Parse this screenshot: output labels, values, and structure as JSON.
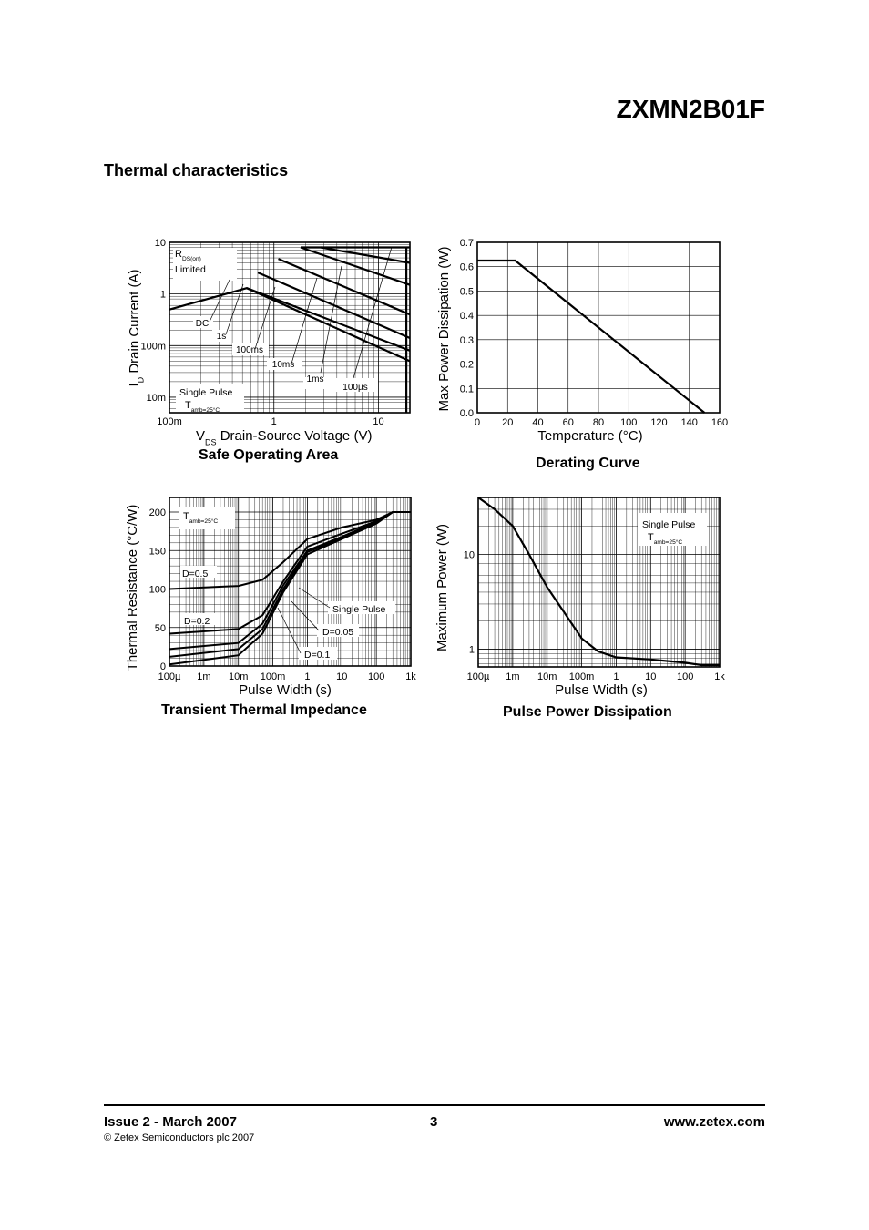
{
  "header": {
    "part_number": "ZXMN2B01F",
    "section_title": "Thermal characteristics"
  },
  "footer": {
    "issue": "Issue 2 - March 2007",
    "page": "3",
    "website": "www.zetex.com",
    "copyright": "© Zetex Semiconductors plc 2007"
  },
  "chart_data": [
    {
      "id": "soa",
      "type": "line",
      "title": "Safe Operating Area",
      "xlabel": "V_DS Drain-Source Voltage (V)",
      "ylabel": "I_D Drain Current (A)",
      "x_scale": "log",
      "y_scale": "log",
      "xlim": [
        0.1,
        20
      ],
      "ylim": [
        0.005,
        10
      ],
      "x_ticks": [
        "100m",
        "1",
        "10"
      ],
      "y_ticks": [
        "10m",
        "100m",
        "1",
        "10"
      ],
      "annotations": [
        "R_DS(on) Limited",
        "Single Pulse",
        "T_amb=25°C"
      ],
      "series": [
        {
          "name": "DC",
          "points": [
            [
              0.1,
              0.5
            ],
            [
              0.55,
              1.3
            ],
            [
              20,
              0.05
            ]
          ]
        },
        {
          "name": "1s",
          "points": [
            [
              0.55,
              1.3
            ],
            [
              20,
              0.08
            ]
          ]
        },
        {
          "name": "100ms",
          "points": [
            [
              0.7,
              2.6
            ],
            [
              20,
              0.14
            ]
          ]
        },
        {
          "name": "10ms",
          "points": [
            [
              1.1,
              4.8
            ],
            [
              20,
              0.4
            ]
          ]
        },
        {
          "name": "1ms",
          "points": [
            [
              1.8,
              8
            ],
            [
              20,
              1.5
            ]
          ]
        },
        {
          "name": "100µs",
          "points": [
            [
              2.8,
              8
            ],
            [
              20,
              4
            ]
          ]
        }
      ]
    },
    {
      "id": "derating",
      "type": "line",
      "title": "Derating Curve",
      "xlabel": "Temperature (°C)",
      "ylabel": "Max Power Dissipation (W)",
      "xlim": [
        0,
        160
      ],
      "ylim": [
        0,
        0.7
      ],
      "x_ticks": [
        "0",
        "20",
        "40",
        "60",
        "80",
        "100",
        "120",
        "140",
        "160"
      ],
      "y_ticks": [
        "0.0",
        "0.1",
        "0.2",
        "0.3",
        "0.4",
        "0.5",
        "0.6",
        "0.7"
      ],
      "series": [
        {
          "points": [
            [
              0,
              0.625
            ],
            [
              25,
              0.625
            ],
            [
              150,
              0
            ]
          ]
        }
      ]
    },
    {
      "id": "transient",
      "type": "line",
      "title": "Transient Thermal Impedance",
      "xlabel": "Pulse Width (s)",
      "ylabel": "Thermal Resistance (°C/W)",
      "x_scale": "log",
      "xlim": [
        0.0001,
        1000
      ],
      "ylim": [
        0,
        200
      ],
      "x_ticks": [
        "100µ",
        "1m",
        "10m",
        "100m",
        "1",
        "10",
        "100",
        "1k"
      ],
      "y_ticks": [
        "0",
        "50",
        "100",
        "150",
        "200"
      ],
      "annotations": [
        "T_amb=25°C",
        "D=0.5",
        "D=0.2",
        "Single Pulse",
        "D=0.05",
        "D=0.1"
      ],
      "series": [
        {
          "name": "D=0.5",
          "points": [
            [
              0.0001,
              100
            ],
            [
              0.01,
              104
            ],
            [
              0.05,
              112
            ],
            [
              0.2,
              135
            ],
            [
              1,
              165
            ],
            [
              10,
              180
            ],
            [
              100,
              190
            ],
            [
              300,
              200
            ],
            [
              1000,
              200
            ]
          ]
        },
        {
          "name": "D=0.2",
          "points": [
            [
              0.0001,
              42
            ],
            [
              0.01,
              48
            ],
            [
              0.05,
              66
            ],
            [
              0.2,
              110
            ],
            [
              1,
              155
            ],
            [
              10,
              172
            ],
            [
              100,
              188
            ],
            [
              300,
              200
            ],
            [
              1000,
              200
            ]
          ]
        },
        {
          "name": "D=0.1",
          "points": [
            [
              0.0001,
              22
            ],
            [
              0.01,
              30
            ],
            [
              0.05,
              55
            ],
            [
              0.2,
              105
            ],
            [
              1,
              150
            ],
            [
              10,
              168
            ],
            [
              100,
              187
            ],
            [
              300,
              200
            ],
            [
              1000,
              200
            ]
          ]
        },
        {
          "name": "D=0.05",
          "points": [
            [
              0.0001,
              12
            ],
            [
              0.01,
              22
            ],
            [
              0.05,
              48
            ],
            [
              0.2,
              100
            ],
            [
              1,
              148
            ],
            [
              10,
              166
            ],
            [
              100,
              186
            ],
            [
              300,
              200
            ],
            [
              1000,
              200
            ]
          ]
        },
        {
          "name": "Single Pulse",
          "points": [
            [
              0.0001,
              2
            ],
            [
              0.01,
              14
            ],
            [
              0.05,
              42
            ],
            [
              0.2,
              96
            ],
            [
              1,
              145
            ],
            [
              10,
              165
            ],
            [
              100,
              185
            ],
            [
              300,
              200
            ],
            [
              1000,
              200
            ]
          ]
        }
      ]
    },
    {
      "id": "pulse_power",
      "type": "line",
      "title": "Pulse Power Dissipation",
      "xlabel": "Pulse Width (s)",
      "ylabel": "Maximum Power (W)",
      "x_scale": "log",
      "y_scale": "log",
      "xlim": [
        0.0001,
        1000
      ],
      "ylim": [
        0.65,
        40
      ],
      "x_ticks": [
        "100µ",
        "1m",
        "10m",
        "100m",
        "1",
        "10",
        "100",
        "1k"
      ],
      "y_ticks": [
        "1",
        "10"
      ],
      "annotations": [
        "Single Pulse",
        "T_amb=25°C"
      ],
      "series": [
        {
          "points": [
            [
              0.0001,
              40
            ],
            [
              0.0003,
              30
            ],
            [
              0.001,
              20
            ],
            [
              0.003,
              10
            ],
            [
              0.01,
              4.5
            ],
            [
              0.03,
              2.5
            ],
            [
              0.1,
              1.3
            ],
            [
              0.3,
              0.95
            ],
            [
              1,
              0.82
            ],
            [
              10,
              0.78
            ],
            [
              100,
              0.72
            ],
            [
              300,
              0.68
            ],
            [
              1000,
              0.68
            ]
          ]
        }
      ]
    }
  ]
}
